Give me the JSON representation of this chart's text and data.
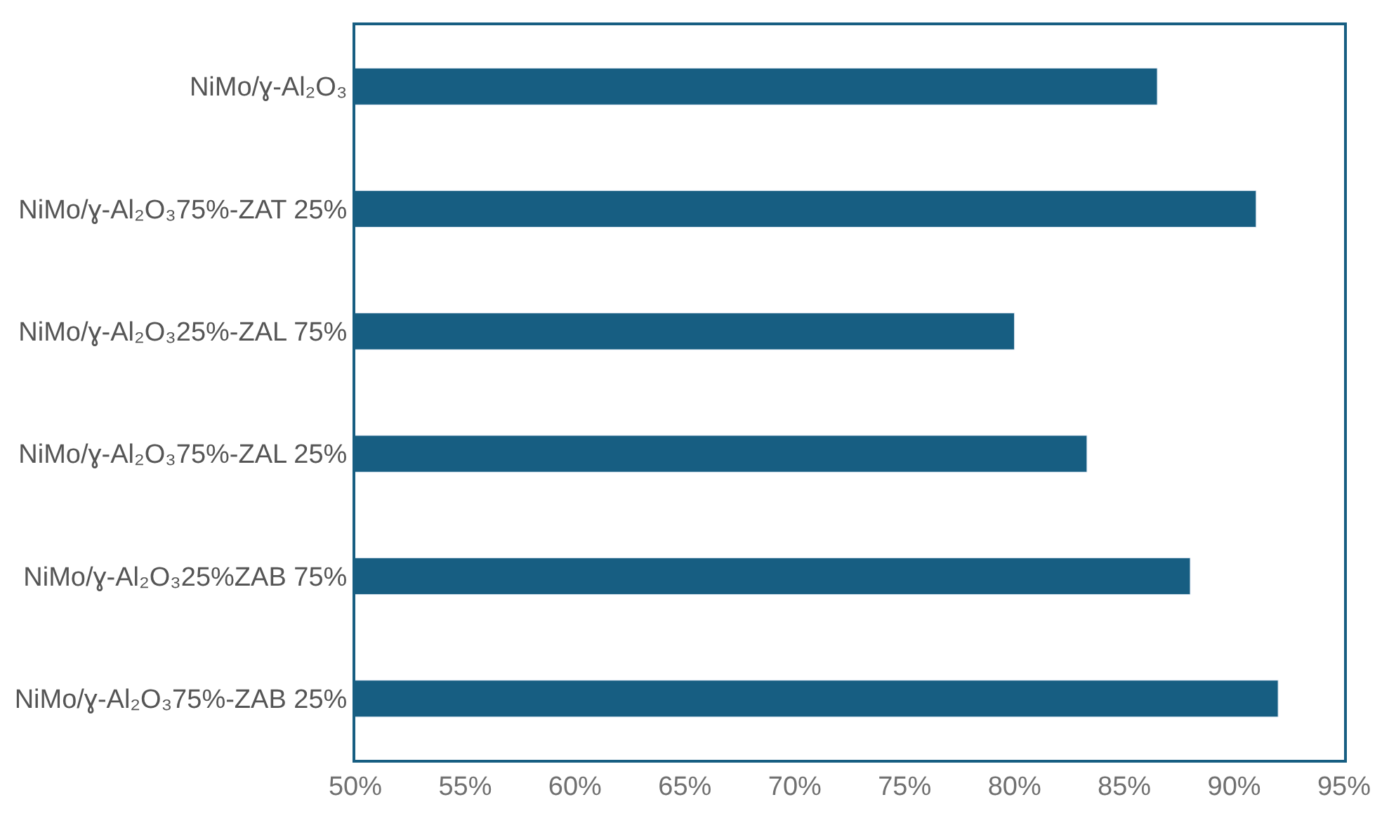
{
  "chart_data": {
    "type": "bar",
    "orientation": "horizontal",
    "categories": [
      "NiMo/ɣ-Al₂O₃",
      "NiMo/ɣ-Al₂O₃75%-ZAT 25%",
      "NiMo/ɣ-Al₂O₃25%-ZAL 75%",
      "NiMo/ɣ-Al₂O₃75%-ZAL 25%",
      "NiMo/ɣ-Al₂O₃25%ZAB 75%",
      "NiMo/ɣ-Al₂O₃75%-ZAB 25%"
    ],
    "values": [
      86.5,
      91.0,
      80.0,
      83.3,
      88.0,
      92.0
    ],
    "color": "#175e82",
    "xlim": [
      50,
      95
    ],
    "xticks": [
      {
        "value": 50,
        "label": "50%"
      },
      {
        "value": 55,
        "label": "55%"
      },
      {
        "value": 60,
        "label": "60%"
      },
      {
        "value": 65,
        "label": "65%"
      },
      {
        "value": 70,
        "label": "70%"
      },
      {
        "value": 75,
        "label": "75%"
      },
      {
        "value": 80,
        "label": "80%"
      },
      {
        "value": 85,
        "label": "85%"
      },
      {
        "value": 90,
        "label": "90%"
      },
      {
        "value": 95,
        "label": "95%"
      }
    ]
  }
}
